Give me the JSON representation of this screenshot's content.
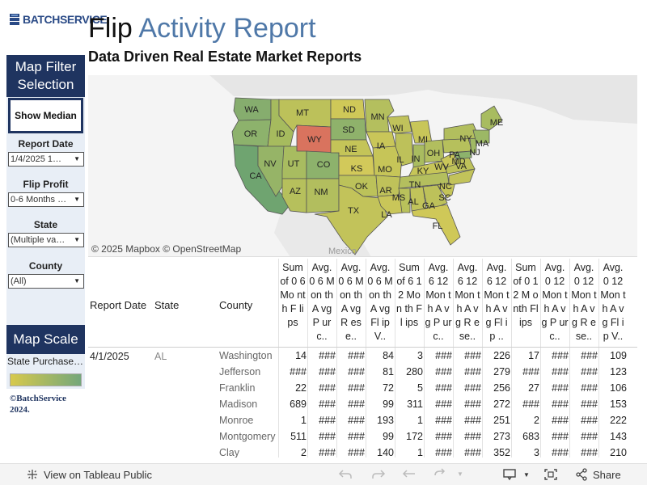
{
  "brand": {
    "logo_text": "BATCHSERVICE"
  },
  "title": {
    "part1": "Flip",
    "part2": "Activity Report"
  },
  "subtitle": "Data Driven Real Estate Market Reports",
  "filters": {
    "header": "Map Filter Selection",
    "show_median": "Show Median",
    "report_date": {
      "label": "Report Date",
      "value": "1/4/2025 1…"
    },
    "flip_profit": {
      "label": "Flip Profit",
      "value": "0-6 Months …"
    },
    "state": {
      "label": "State",
      "value": "(Multiple va…"
    },
    "county": {
      "label": "County",
      "value": "(All)"
    },
    "scale_header": "Map Scale",
    "scale_label": "State Purchase…",
    "scale_colors": {
      "low": "#d7c94d",
      "high": "#74a77a"
    }
  },
  "copyright": {
    "line1": "©BatchService",
    "line2": "2024."
  },
  "map": {
    "attribution": "© 2025 Mapbox  © OpenStreetMap",
    "mexico_label": "Mexico",
    "highlight_color": "#d9735e",
    "states": [
      "WA",
      "MT",
      "ND",
      "MN",
      "OR",
      "ID",
      "WY",
      "SD",
      "WI",
      "MI",
      "ME",
      "NY",
      "MA",
      "NV",
      "UT",
      "CO",
      "NE",
      "IA",
      "IL",
      "IN",
      "OH",
      "PA",
      "NJ",
      "MD",
      "CA",
      "KS",
      "MO",
      "KY",
      "WV",
      "VA",
      "AZ",
      "NM",
      "OK",
      "AR",
      "TN",
      "NC",
      "TX",
      "MS",
      "AL",
      "GA",
      "SC",
      "LA",
      "FL"
    ]
  },
  "table": {
    "row_headers": [
      "Report Date",
      "State",
      "County"
    ],
    "columns": [
      "Sum of 0 6 Month Flips",
      "Avg. 0 6 Month Avg Purc..",
      "Avg. 0 6 Month Avg Rese..",
      "Avg. 0 6 Month Avg Flip V..",
      "Sum of 6 12 Month Flips",
      "Avg. 6 12 Month Avg Purc..",
      "Avg. 6 12 Month Avg Rese..",
      "Avg. 6 12 Month Avg Flip ..",
      "Sum of 0 12 Month Flips",
      "Avg. 0 12 Month Avg Purc..",
      "Avg. 0 12 Month Avg Rese..",
      "Avg. 0 12 Month Avg Flip V.."
    ],
    "col_head_display": [
      "Sum of 0 6 Mo nth F lips",
      "Avg. 0 6 Mon th A vg P urc..",
      "Avg. 0 6 Mon th A vg R ese..",
      "Avg. 0 6 Mon th A vg Fl ip V..",
      "Sum of 6 12 Mon th Fl ips",
      "Avg. 6 12 Mon th A vg P urc..",
      "Avg. 6 12 Mon th A vg R ese..",
      "Avg. 6 12 Mon th A vg Fl ip ..",
      "Sum of 0 12 M onth Flips",
      "Avg. 0 12 Mon th A vg P urc..",
      "Avg. 0 12 Mon th A vg R ese..",
      "Avg. 0 12 Mon th A vg Fl ip V.."
    ],
    "report_date": "4/1/2025",
    "state": "AL",
    "rows": [
      {
        "county": "Washington",
        "cells": [
          "14",
          "###",
          "###",
          "84",
          "3",
          "###",
          "###",
          "226",
          "17",
          "###",
          "###",
          "109"
        ]
      },
      {
        "county": "Jefferson",
        "cells": [
          "###",
          "###",
          "###",
          "81",
          "280",
          "###",
          "###",
          "279",
          "###",
          "###",
          "###",
          "123"
        ]
      },
      {
        "county": "Franklin",
        "cells": [
          "22",
          "###",
          "###",
          "72",
          "5",
          "###",
          "###",
          "256",
          "27",
          "###",
          "###",
          "106"
        ]
      },
      {
        "county": "Madison",
        "cells": [
          "689",
          "###",
          "###",
          "99",
          "311",
          "###",
          "###",
          "272",
          "###",
          "###",
          "###",
          "153"
        ]
      },
      {
        "county": "Monroe",
        "cells": [
          "1",
          "###",
          "###",
          "193",
          "1",
          "###",
          "###",
          "251",
          "2",
          "###",
          "###",
          "222"
        ]
      },
      {
        "county": "Montgomery",
        "cells": [
          "511",
          "###",
          "###",
          "99",
          "172",
          "###",
          "###",
          "273",
          "683",
          "###",
          "###",
          "143"
        ]
      },
      {
        "county": "Clay",
        "cells": [
          "2",
          "###",
          "###",
          "140",
          "1",
          "###",
          "###",
          "352",
          "3",
          "###",
          "###",
          "210"
        ]
      }
    ]
  },
  "toolbar": {
    "view_label": "View on Tableau Public",
    "share_label": "Share"
  }
}
